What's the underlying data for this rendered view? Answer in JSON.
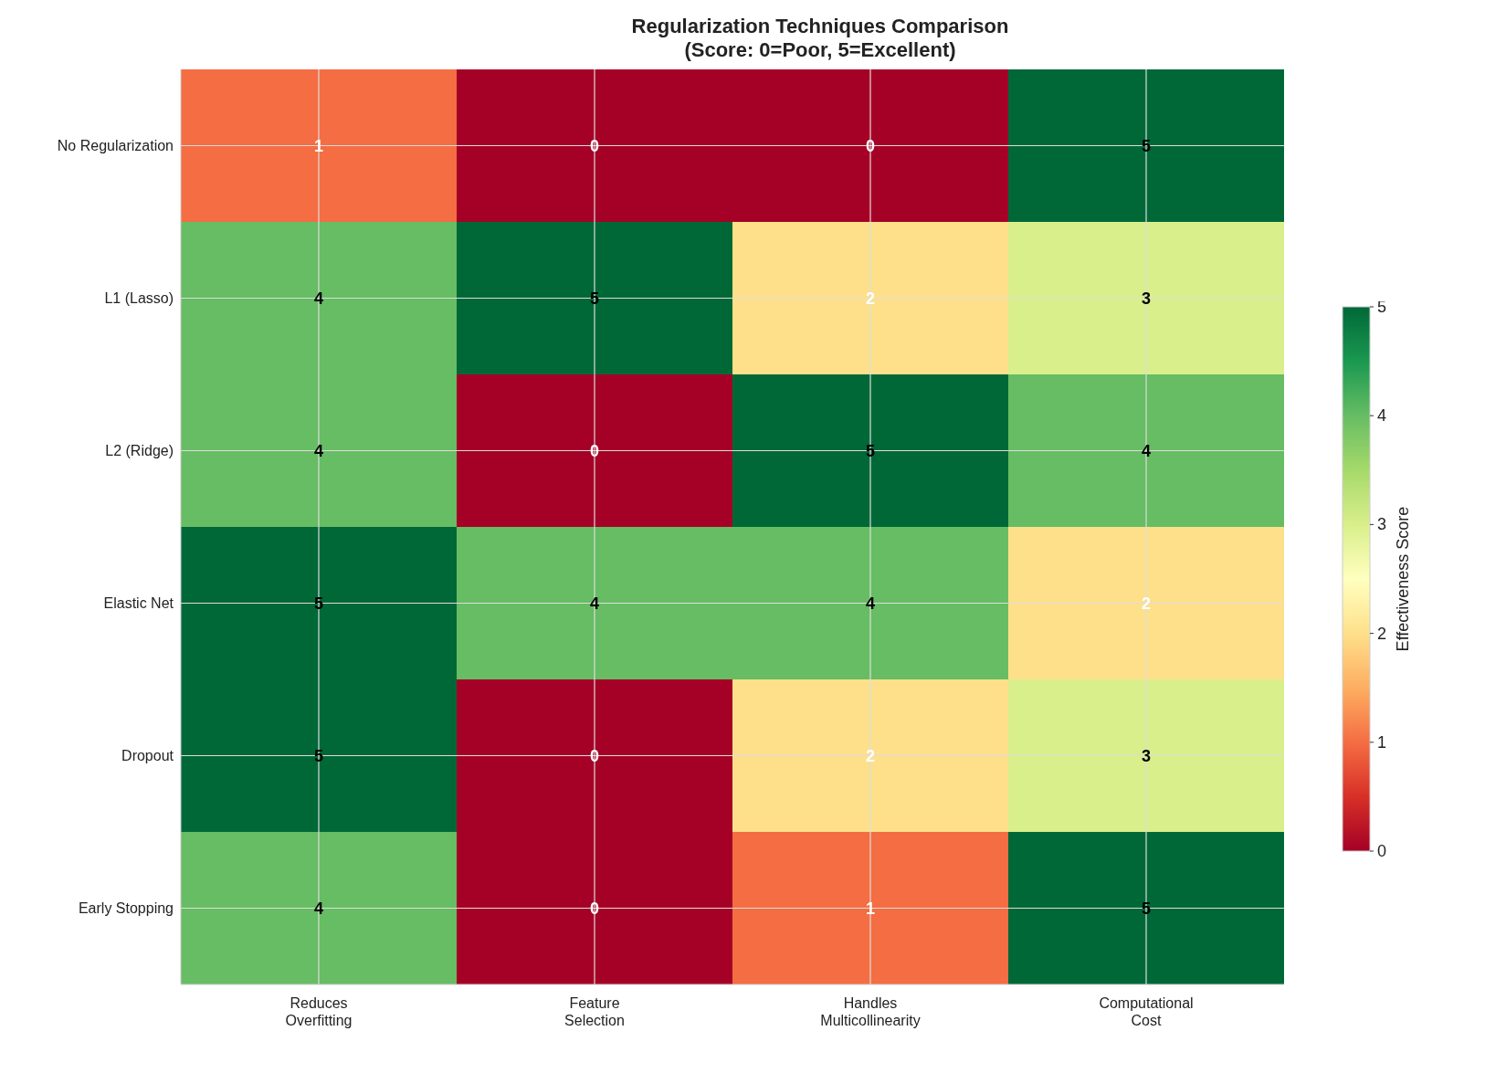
{
  "chart_data": {
    "type": "heatmap",
    "title": "Regularization Techniques Comparison\n(Score: 0=Poor, 5=Excellent)",
    "categories": [
      "Reduces\nOverfitting",
      "Feature\nSelection",
      "Handles\nMulticollinearity",
      "Computational\nCost"
    ],
    "y_categories": [
      "No Regularization",
      "L1 (Lasso)",
      "L2 (Ridge)",
      "Elastic Net",
      "Dropout",
      "Early Stopping"
    ],
    "cells": [
      [
        1,
        0,
        0,
        5
      ],
      [
        4,
        5,
        2,
        3
      ],
      [
        4,
        0,
        5,
        4
      ],
      [
        5,
        4,
        4,
        2
      ],
      [
        5,
        0,
        2,
        3
      ],
      [
        4,
        0,
        1,
        5
      ]
    ],
    "data_labels": true,
    "clabel": "Effectiveness Score",
    "clim": [
      0,
      5
    ],
    "cticks": [
      0,
      1,
      2,
      3,
      4,
      5
    ],
    "grid": true
  }
}
